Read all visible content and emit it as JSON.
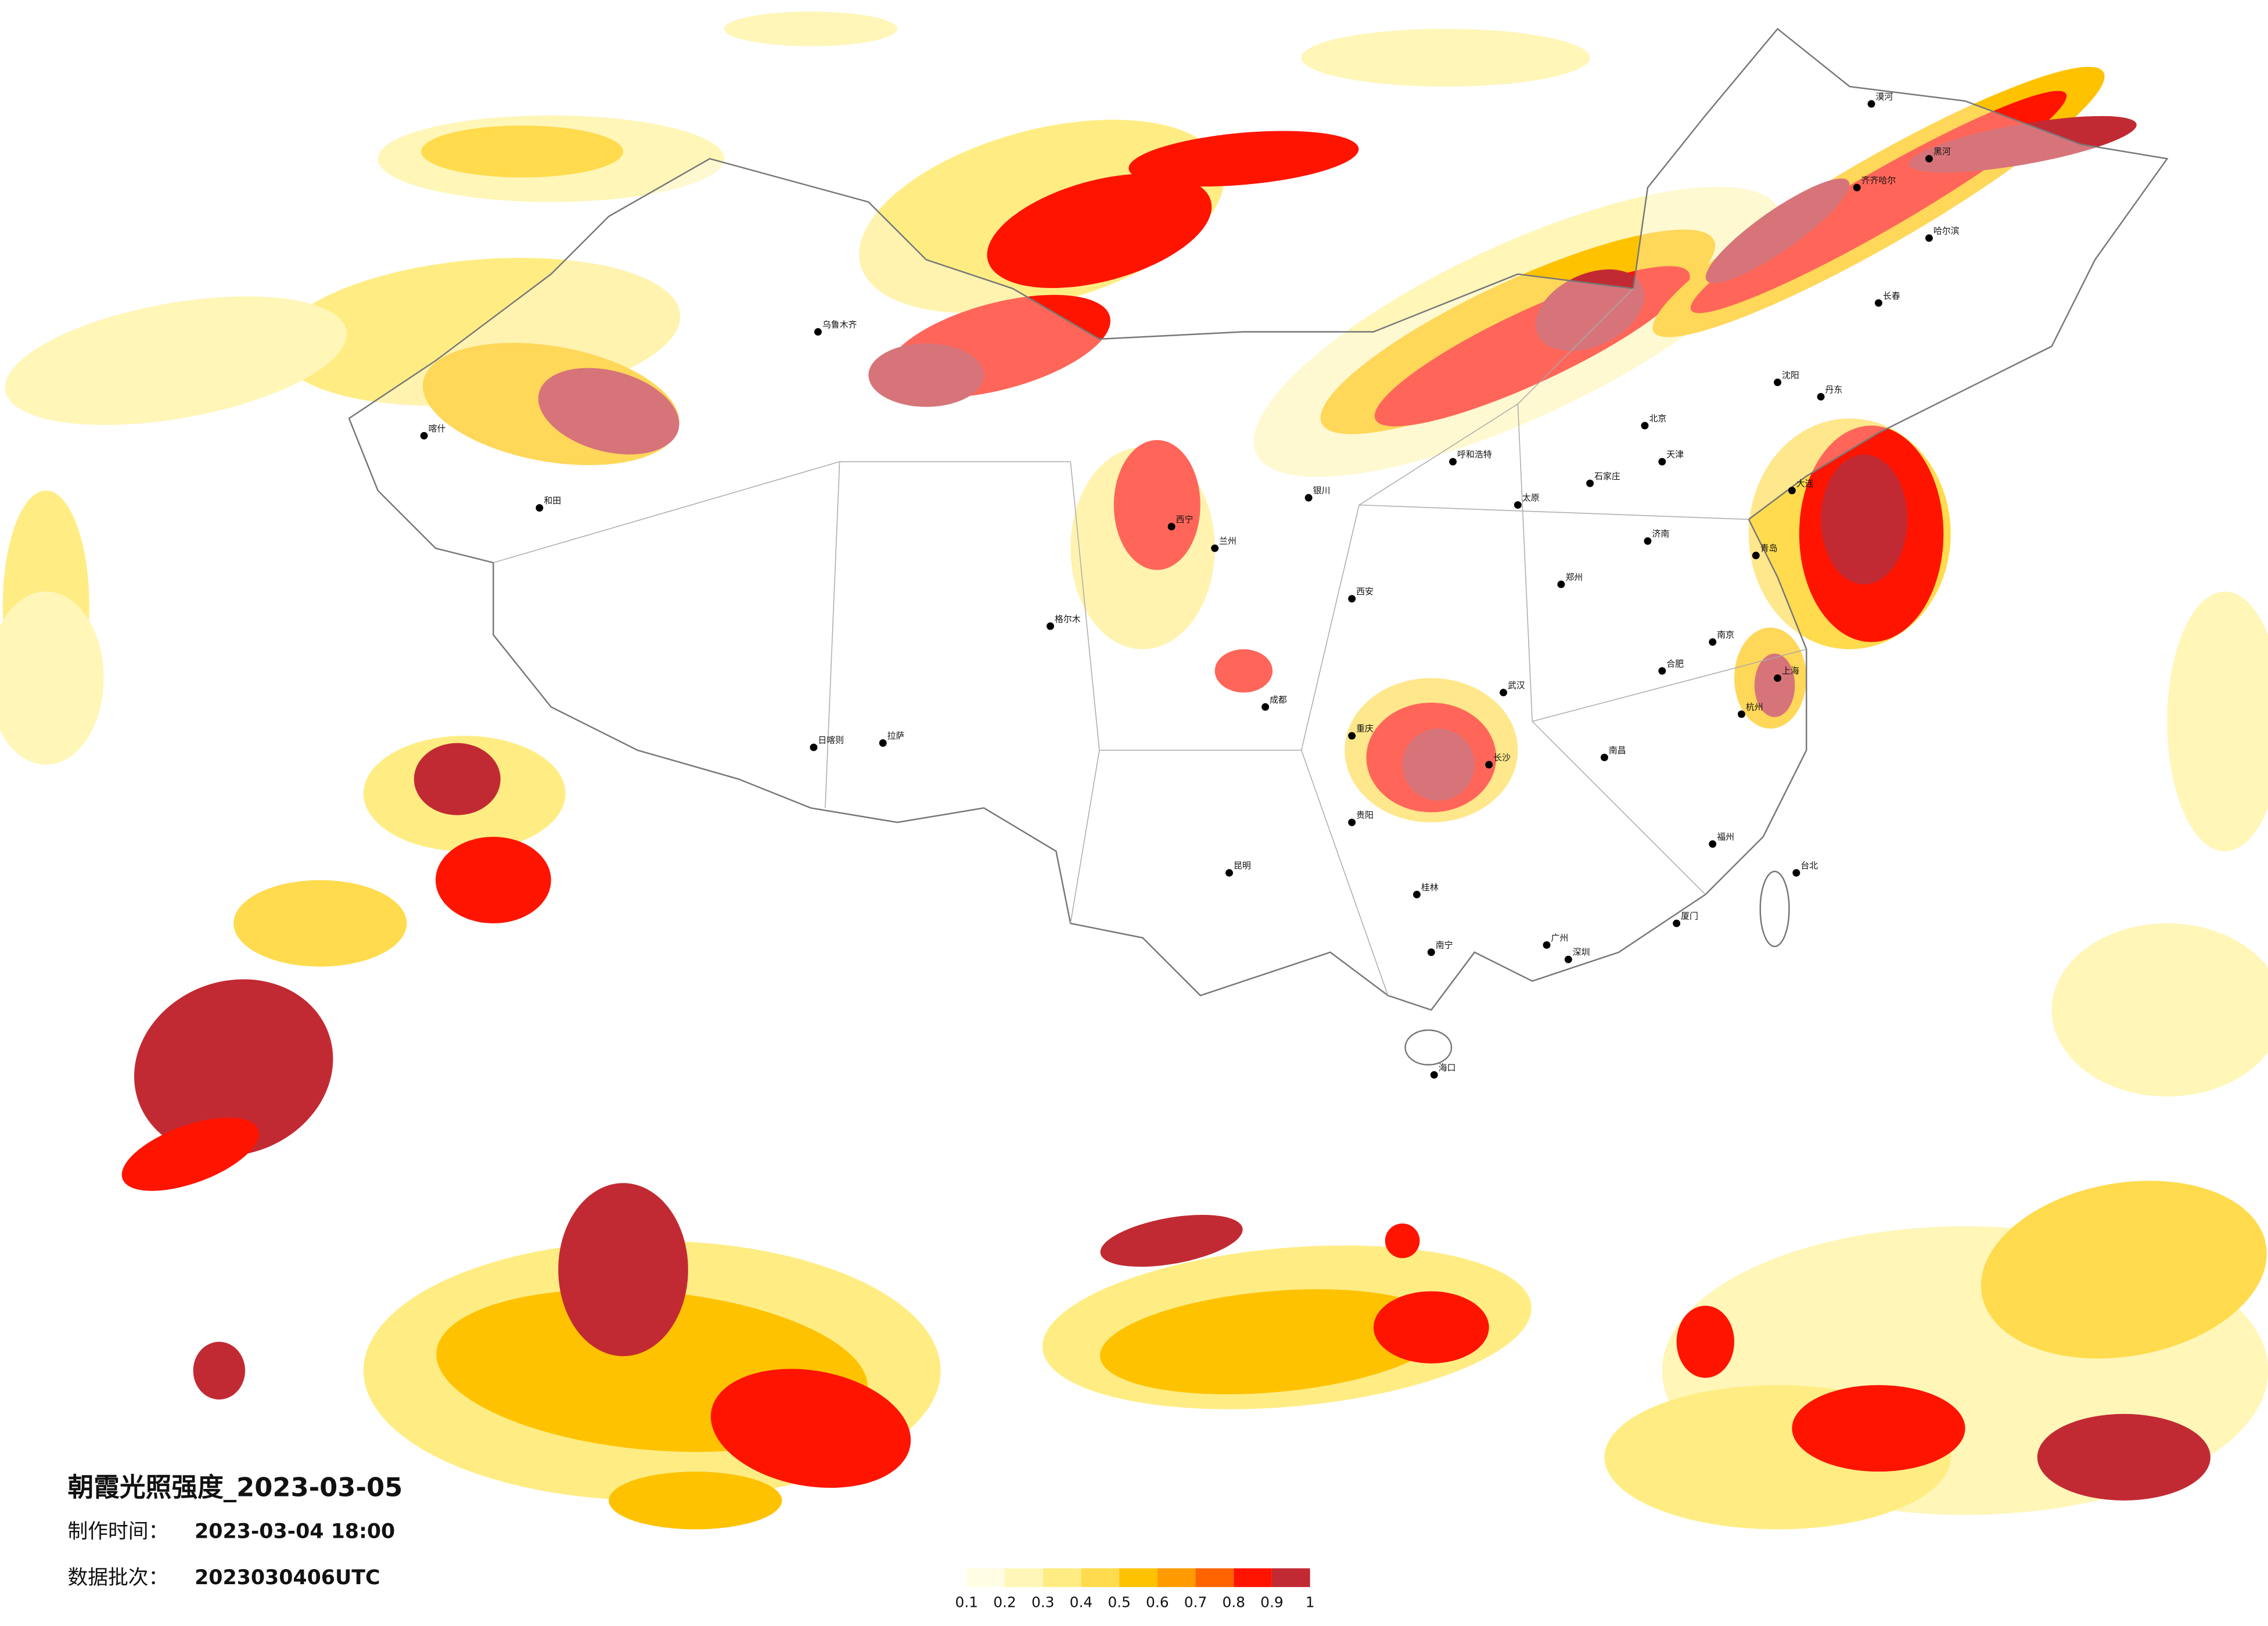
{
  "title": "朝霞光照强度_2023-03-05",
  "info": [
    {
      "label": "制作时间：",
      "value": "2023-03-04 18:00"
    },
    {
      "label": "数据批次：",
      "value": "2023030406UTC"
    }
  ],
  "legend": {
    "ticks": [
      0.1,
      0.2,
      0.3,
      0.4,
      0.5,
      0.6,
      0.7,
      0.8,
      0.9,
      1
    ],
    "colors": [
      "#fffde3",
      "#fff6b8",
      "#ffed84",
      "#ffdb4d",
      "#ffc200",
      "#ff9b00",
      "#ff6400",
      "#ff1400",
      "#c22a33"
    ]
  },
  "cities": [
    "北京",
    "天津",
    "石家庄",
    "太原",
    "呼和浩特",
    "沈阳",
    "长春",
    "哈尔滨",
    "济南",
    "郑州",
    "南京",
    "上海",
    "杭州",
    "合肥",
    "武汉",
    "长沙",
    "南昌",
    "福州",
    "广州",
    "南宁",
    "海口",
    "贵阳",
    "昆明",
    "成都",
    "重庆",
    "西安",
    "兰州",
    "西宁",
    "银川",
    "乌鲁木齐",
    "拉萨",
    "喀什",
    "和田",
    "格尔木",
    "大连",
    "青岛",
    "厦门",
    "深圳",
    "桂林",
    "台北",
    "漠河",
    "黑河",
    "齐齐哈尔",
    "丹东",
    "日喀则"
  ]
}
